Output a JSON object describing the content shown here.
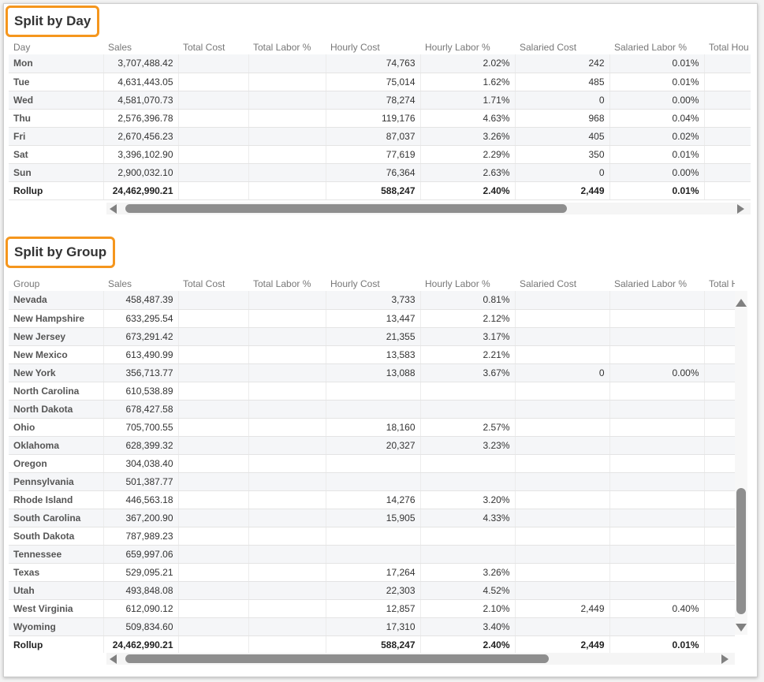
{
  "columns": [
    "Sales",
    "Total Cost",
    "Total Labor %",
    "Hourly Cost",
    "Hourly Labor %",
    "Salaried Cost",
    "Salaried Labor %",
    "Total Hou"
  ],
  "day_section": {
    "title": "Split by Day",
    "first_column": "Day",
    "rows": [
      {
        "label": "Mon",
        "sales": "3,707,488.42",
        "total_cost": "",
        "total_labor": "",
        "hourly_cost": "74,763",
        "hourly_labor": "2.02%",
        "salaried_cost": "242",
        "salaried_labor": "0.01%"
      },
      {
        "label": "Tue",
        "sales": "4,631,443.05",
        "total_cost": "",
        "total_labor": "",
        "hourly_cost": "75,014",
        "hourly_labor": "1.62%",
        "salaried_cost": "485",
        "salaried_labor": "0.01%"
      },
      {
        "label": "Wed",
        "sales": "4,581,070.73",
        "total_cost": "",
        "total_labor": "",
        "hourly_cost": "78,274",
        "hourly_labor": "1.71%",
        "salaried_cost": "0",
        "salaried_labor": "0.00%"
      },
      {
        "label": "Thu",
        "sales": "2,576,396.78",
        "total_cost": "",
        "total_labor": "",
        "hourly_cost": "119,176",
        "hourly_labor": "4.63%",
        "salaried_cost": "968",
        "salaried_labor": "0.04%"
      },
      {
        "label": "Fri",
        "sales": "2,670,456.23",
        "total_cost": "",
        "total_labor": "",
        "hourly_cost": "87,037",
        "hourly_labor": "3.26%",
        "salaried_cost": "405",
        "salaried_labor": "0.02%"
      },
      {
        "label": "Sat",
        "sales": "3,396,102.90",
        "total_cost": "",
        "total_labor": "",
        "hourly_cost": "77,619",
        "hourly_labor": "2.29%",
        "salaried_cost": "350",
        "salaried_labor": "0.01%"
      },
      {
        "label": "Sun",
        "sales": "2,900,032.10",
        "total_cost": "",
        "total_labor": "",
        "hourly_cost": "76,364",
        "hourly_labor": "2.63%",
        "salaried_cost": "0",
        "salaried_labor": "0.00%"
      }
    ],
    "rollup": {
      "label": "Rollup",
      "sales": "24,462,990.21",
      "total_cost": "",
      "total_labor": "",
      "hourly_cost": "588,247",
      "hourly_labor": "2.40%",
      "salaried_cost": "2,449",
      "salaried_labor": "0.01%"
    }
  },
  "group_section": {
    "title": "Split by Group",
    "first_column": "Group",
    "last_column_truncated": "Total H",
    "rows": [
      {
        "label": "Nevada",
        "sales": "458,487.39",
        "total_cost": "",
        "total_labor": "",
        "hourly_cost": "3,733",
        "hourly_labor": "0.81%",
        "salaried_cost": "",
        "salaried_labor": ""
      },
      {
        "label": "New Hampshire",
        "sales": "633,295.54",
        "total_cost": "",
        "total_labor": "",
        "hourly_cost": "13,447",
        "hourly_labor": "2.12%",
        "salaried_cost": "",
        "salaried_labor": ""
      },
      {
        "label": "New Jersey",
        "sales": "673,291.42",
        "total_cost": "",
        "total_labor": "",
        "hourly_cost": "21,355",
        "hourly_labor": "3.17%",
        "salaried_cost": "",
        "salaried_labor": ""
      },
      {
        "label": "New Mexico",
        "sales": "613,490.99",
        "total_cost": "",
        "total_labor": "",
        "hourly_cost": "13,583",
        "hourly_labor": "2.21%",
        "salaried_cost": "",
        "salaried_labor": ""
      },
      {
        "label": "New York",
        "sales": "356,713.77",
        "total_cost": "",
        "total_labor": "",
        "hourly_cost": "13,088",
        "hourly_labor": "3.67%",
        "salaried_cost": "0",
        "salaried_labor": "0.00%"
      },
      {
        "label": "North Carolina",
        "sales": "610,538.89",
        "total_cost": "",
        "total_labor": "",
        "hourly_cost": "",
        "hourly_labor": "",
        "salaried_cost": "",
        "salaried_labor": ""
      },
      {
        "label": "North Dakota",
        "sales": "678,427.58",
        "total_cost": "",
        "total_labor": "",
        "hourly_cost": "",
        "hourly_labor": "",
        "salaried_cost": "",
        "salaried_labor": ""
      },
      {
        "label": "Ohio",
        "sales": "705,700.55",
        "total_cost": "",
        "total_labor": "",
        "hourly_cost": "18,160",
        "hourly_labor": "2.57%",
        "salaried_cost": "",
        "salaried_labor": ""
      },
      {
        "label": "Oklahoma",
        "sales": "628,399.32",
        "total_cost": "",
        "total_labor": "",
        "hourly_cost": "20,327",
        "hourly_labor": "3.23%",
        "salaried_cost": "",
        "salaried_labor": ""
      },
      {
        "label": "Oregon",
        "sales": "304,038.40",
        "total_cost": "",
        "total_labor": "",
        "hourly_cost": "",
        "hourly_labor": "",
        "salaried_cost": "",
        "salaried_labor": ""
      },
      {
        "label": "Pennsylvania",
        "sales": "501,387.77",
        "total_cost": "",
        "total_labor": "",
        "hourly_cost": "",
        "hourly_labor": "",
        "salaried_cost": "",
        "salaried_labor": ""
      },
      {
        "label": "Rhode Island",
        "sales": "446,563.18",
        "total_cost": "",
        "total_labor": "",
        "hourly_cost": "14,276",
        "hourly_labor": "3.20%",
        "salaried_cost": "",
        "salaried_labor": ""
      },
      {
        "label": "South Carolina",
        "sales": "367,200.90",
        "total_cost": "",
        "total_labor": "",
        "hourly_cost": "15,905",
        "hourly_labor": "4.33%",
        "salaried_cost": "",
        "salaried_labor": ""
      },
      {
        "label": "South Dakota",
        "sales": "787,989.23",
        "total_cost": "",
        "total_labor": "",
        "hourly_cost": "",
        "hourly_labor": "",
        "salaried_cost": "",
        "salaried_labor": ""
      },
      {
        "label": "Tennessee",
        "sales": "659,997.06",
        "total_cost": "",
        "total_labor": "",
        "hourly_cost": "",
        "hourly_labor": "",
        "salaried_cost": "",
        "salaried_labor": ""
      },
      {
        "label": "Texas",
        "sales": "529,095.21",
        "total_cost": "",
        "total_labor": "",
        "hourly_cost": "17,264",
        "hourly_labor": "3.26%",
        "salaried_cost": "",
        "salaried_labor": ""
      },
      {
        "label": "Utah",
        "sales": "493,848.08",
        "total_cost": "",
        "total_labor": "",
        "hourly_cost": "22,303",
        "hourly_labor": "4.52%",
        "salaried_cost": "",
        "salaried_labor": ""
      },
      {
        "label": "West Virginia",
        "sales": "612,090.12",
        "total_cost": "",
        "total_labor": "",
        "hourly_cost": "12,857",
        "hourly_labor": "2.10%",
        "salaried_cost": "2,449",
        "salaried_labor": "0.40%"
      },
      {
        "label": "Wyoming",
        "sales": "509,834.60",
        "total_cost": "",
        "total_labor": "",
        "hourly_cost": "17,310",
        "hourly_labor": "3.40%",
        "salaried_cost": "",
        "salaried_labor": ""
      }
    ],
    "rollup": {
      "label": "Rollup",
      "sales": "24,462,990.21",
      "total_cost": "",
      "total_labor": "",
      "hourly_cost": "588,247",
      "hourly_labor": "2.40%",
      "salaried_cost": "2,449",
      "salaried_labor": "0.01%"
    }
  },
  "icons": {
    "scroll_left": "triangle-left-icon",
    "scroll_right": "triangle-right-icon",
    "scroll_up": "triangle-up-icon",
    "scroll_down": "triangle-down-icon"
  },
  "colors": {
    "title_border": "#f5961d",
    "row_alt": "#f5f6f8",
    "scroll_thumb": "#8e8e8e"
  }
}
